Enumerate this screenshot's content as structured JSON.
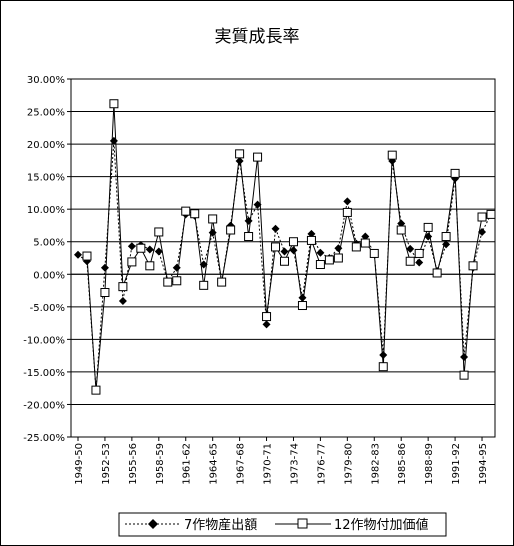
{
  "chart_data": {
    "type": "line",
    "title": "実質成長率",
    "ylim": [
      -0.25,
      0.3
    ],
    "y_ticks": [
      "30.00%",
      "25.00%",
      "20.00%",
      "15.00%",
      "10.00%",
      "5.00%",
      "0.00%",
      "-5.00%",
      "-10.00%",
      "-15.00%",
      "-20.00%",
      "-25.00%"
    ],
    "x_tick_labels": [
      "1949-50",
      "1952-53",
      "1955-56",
      "1958-59",
      "1961-62",
      "1964-65",
      "1967-68",
      "1970-71",
      "1973-74",
      "1976-77",
      "1979-80",
      "1982-83",
      "1985-86",
      "1988-89",
      "1991-92",
      "1994-95"
    ],
    "grid": "horizontal",
    "legend_position": "bottom",
    "categories": [
      "1949-50",
      "1950-51",
      "1951-52",
      "1952-53",
      "1953-54",
      "1954-55",
      "1955-56",
      "1956-57",
      "1957-58",
      "1958-59",
      "1959-60",
      "1960-61",
      "1961-62",
      "1962-63",
      "1963-64",
      "1964-65",
      "1965-66",
      "1966-67",
      "1967-68",
      "1968-69",
      "1969-70",
      "1970-71",
      "1971-72",
      "1972-73",
      "1973-74",
      "1974-75",
      "1975-76",
      "1976-77",
      "1977-78",
      "1978-79",
      "1979-80",
      "1980-81",
      "1981-82",
      "1982-83",
      "1983-84",
      "1984-85",
      "1985-86",
      "1986-87",
      "1987-88",
      "1988-89",
      "1989-90",
      "1990-91",
      "1991-92",
      "1992-93",
      "1993-94",
      "1994-95",
      "1995-96"
    ],
    "series": [
      {
        "name": "7作物産出額",
        "values": [
          0.03,
          0.02,
          -0.178,
          0.01,
          0.205,
          -0.041,
          0.043,
          0.045,
          0.038,
          0.035,
          -0.011,
          0.01,
          0.092,
          0.09,
          0.015,
          0.064,
          -0.012,
          0.075,
          0.174,
          0.082,
          0.107,
          -0.077,
          0.07,
          0.035,
          0.037,
          -0.036,
          0.062,
          0.033,
          0.025,
          0.04,
          0.112,
          0.047,
          0.058,
          0.032,
          -0.124,
          0.174,
          0.078,
          0.039,
          0.018,
          0.058,
          0.005,
          0.046,
          0.147,
          -0.127,
          0.01,
          0.065,
          0.092
        ]
      },
      {
        "name": "12作物付加価値",
        "values": [
          null,
          0.028,
          -0.178,
          -0.028,
          0.262,
          -0.019,
          0.019,
          0.04,
          0.013,
          0.065,
          -0.012,
          -0.01,
          0.097,
          0.093,
          -0.017,
          0.085,
          -0.012,
          0.068,
          0.185,
          0.058,
          0.18,
          -0.065,
          0.042,
          0.02,
          0.05,
          -0.048,
          0.052,
          0.015,
          0.022,
          0.025,
          0.095,
          0.042,
          0.048,
          0.032,
          -0.142,
          0.183,
          0.068,
          0.02,
          0.032,
          0.072,
          0.002,
          0.058,
          0.155,
          -0.155,
          0.013,
          0.088,
          0.092
        ]
      }
    ]
  },
  "colors": {
    "line": "#000000",
    "marker_fill_series1": "#000000",
    "marker_fill_series2": "#ffffff",
    "background": "#ffffff"
  }
}
